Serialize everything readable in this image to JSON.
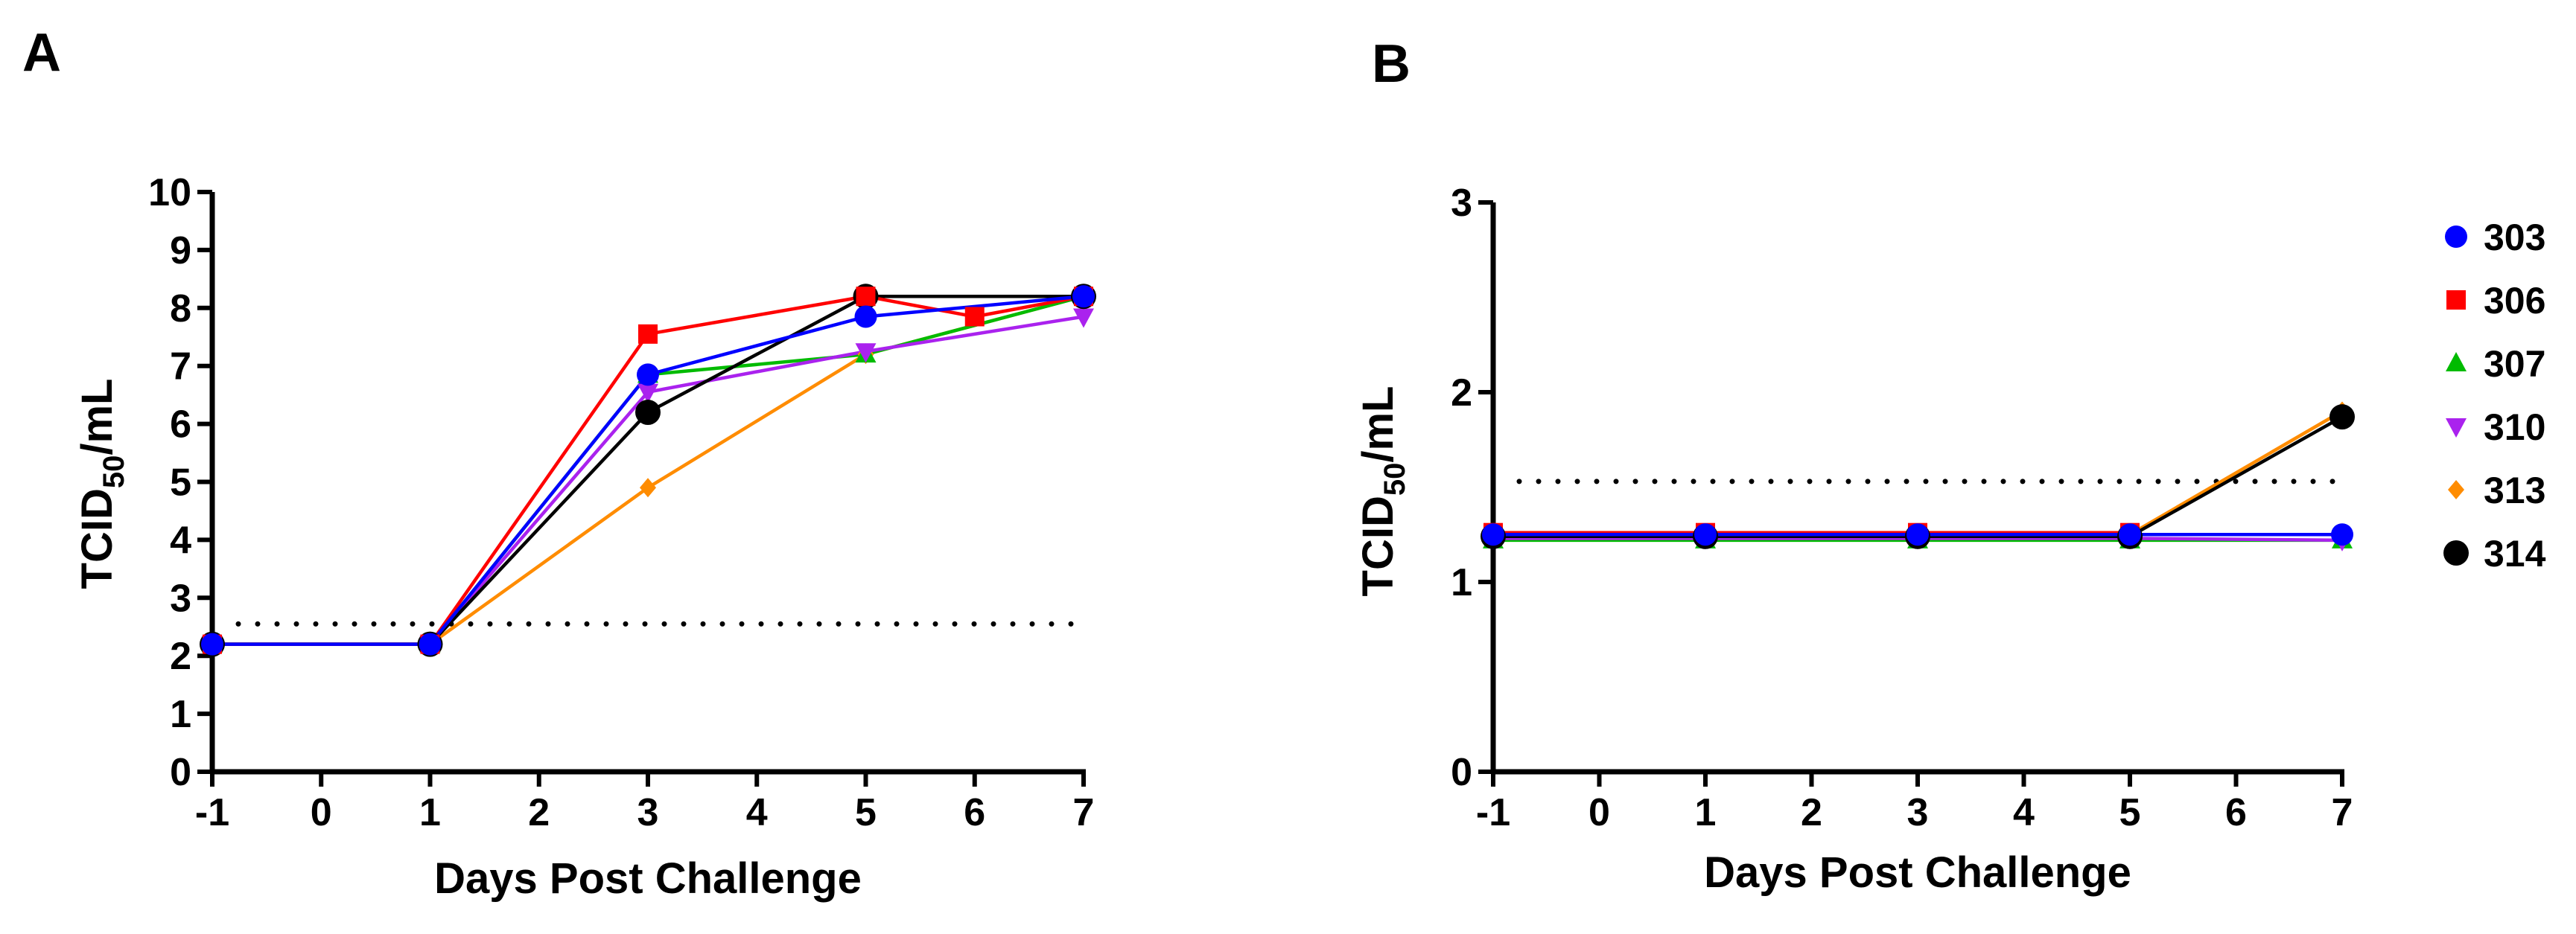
{
  "legend": [
    {
      "name": "303",
      "color": "#0000ff",
      "marker": "circle"
    },
    {
      "name": "306",
      "color": "#ff0000",
      "marker": "square"
    },
    {
      "name": "307",
      "color": "#00bb00",
      "marker": "triangle-up"
    },
    {
      "name": "310",
      "color": "#aa22ee",
      "marker": "triangle-down"
    },
    {
      "name": "313",
      "color": "#ff8c00",
      "marker": "diamond"
    },
    {
      "name": "314",
      "color": "#000000",
      "marker": "circle-large"
    }
  ],
  "chart_data": [
    {
      "panel": "A",
      "type": "line",
      "xlabel": "Days Post Challenge",
      "ylabel_main": "TCID",
      "ylabel_sub": "50",
      "ylabel_tail": "/mL",
      "xlim": [
        -1,
        7
      ],
      "ylim": [
        0,
        10
      ],
      "xticks": [
        -1,
        0,
        1,
        2,
        3,
        4,
        5,
        6,
        7
      ],
      "yticks": [
        0,
        1,
        2,
        3,
        4,
        5,
        6,
        7,
        8,
        9,
        10
      ],
      "threshold": 2.55,
      "series": [
        {
          "name": "313",
          "x": [
            -1,
            1,
            3,
            5,
            7
          ],
          "y": [
            2.2,
            2.2,
            4.9,
            7.2,
            8.2
          ]
        },
        {
          "name": "307",
          "x": [
            -1,
            1,
            3,
            5,
            7
          ],
          "y": [
            2.2,
            2.2,
            6.85,
            7.2,
            8.2
          ]
        },
        {
          "name": "310",
          "x": [
            -1,
            1,
            3,
            5,
            7
          ],
          "y": [
            2.2,
            2.2,
            6.55,
            7.25,
            7.85
          ]
        },
        {
          "name": "314",
          "x": [
            -1,
            1,
            3,
            5,
            7
          ],
          "y": [
            2.2,
            2.2,
            6.2,
            8.2,
            8.2
          ]
        },
        {
          "name": "306",
          "x": [
            -1,
            1,
            3,
            5,
            6,
            7
          ],
          "y": [
            2.2,
            2.2,
            7.55,
            8.2,
            7.85,
            8.2
          ]
        },
        {
          "name": "303",
          "x": [
            -1,
            1,
            3,
            5,
            7
          ],
          "y": [
            2.2,
            2.2,
            6.85,
            7.85,
            8.2
          ]
        }
      ]
    },
    {
      "panel": "B",
      "type": "line",
      "xlabel": "Days Post Challenge",
      "ylabel_main": "TCID",
      "ylabel_sub": "50",
      "ylabel_tail": "/mL",
      "xlim": [
        -1,
        7
      ],
      "ylim": [
        0,
        3
      ],
      "xticks": [
        -1,
        0,
        1,
        2,
        3,
        4,
        5,
        6,
        7
      ],
      "yticks": [
        0,
        1,
        2,
        3
      ],
      "threshold": 1.53,
      "series": [
        {
          "name": "307",
          "x": [
            -1,
            1,
            3,
            5,
            7
          ],
          "y": [
            1.22,
            1.22,
            1.22,
            1.22,
            1.22
          ]
        },
        {
          "name": "310",
          "x": [
            -1,
            1,
            3,
            5,
            7
          ],
          "y": [
            1.23,
            1.23,
            1.23,
            1.23,
            1.22
          ]
        },
        {
          "name": "306",
          "x": [
            -1,
            1,
            3,
            5
          ],
          "y": [
            1.26,
            1.26,
            1.26,
            1.26
          ]
        },
        {
          "name": "313",
          "x": [
            -1,
            1,
            3,
            5,
            7
          ],
          "y": [
            1.25,
            1.25,
            1.25,
            1.25,
            1.9
          ]
        },
        {
          "name": "314",
          "x": [
            -1,
            1,
            3,
            5,
            7
          ],
          "y": [
            1.24,
            1.24,
            1.24,
            1.24,
            1.87
          ]
        },
        {
          "name": "303",
          "x": [
            -1,
            1,
            3,
            5,
            7
          ],
          "y": [
            1.25,
            1.25,
            1.25,
            1.25,
            1.25
          ]
        }
      ]
    }
  ]
}
